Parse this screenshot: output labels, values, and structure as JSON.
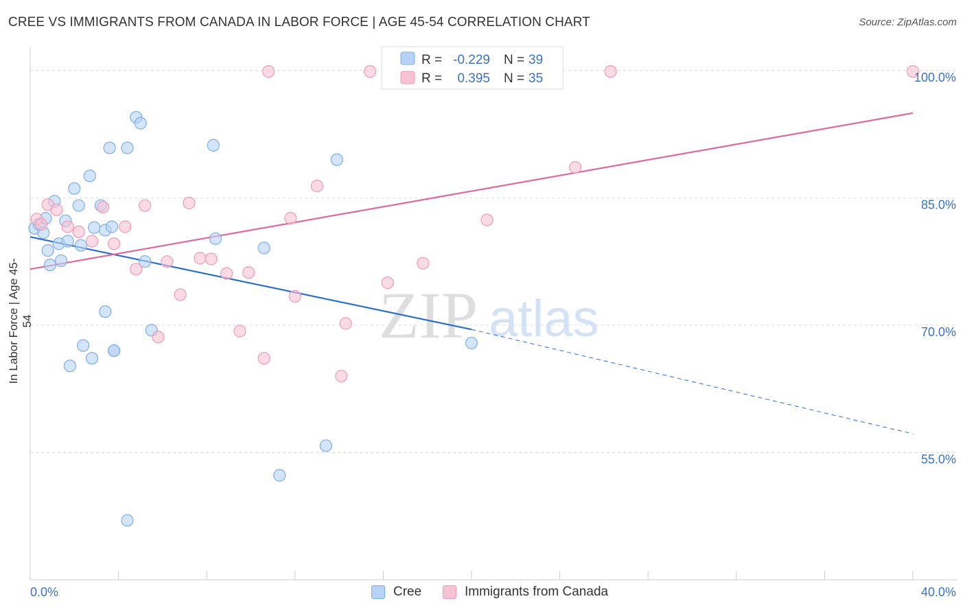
{
  "title": "CREE VS IMMIGRANTS FROM CANADA IN LABOR FORCE | AGE 45-54 CORRELATION CHART",
  "source": "Source: ZipAtlas.com",
  "watermark": {
    "zip": "ZIP",
    "atlas": "atlas"
  },
  "colors": {
    "cree_fill": "#b7d2f5",
    "cree_stroke": "#7aaee8",
    "cree_line": "#2a6fcc",
    "canada_fill": "#f7c3d3",
    "canada_stroke": "#ee9ab5",
    "canada_line": "#e0699a",
    "value_text": "#3a72c4",
    "grid": "#dddddd",
    "axis": "#cccccc"
  },
  "legend_top": [
    {
      "r_label": "R =",
      "r_value": "-0.229",
      "n_label": "N =",
      "n_value": "39"
    },
    {
      "r_label": "R =",
      "r_value": "0.395",
      "n_label": "N =",
      "n_value": "35"
    }
  ],
  "legend_bottom": [
    "Cree",
    "Immigrants from Canada"
  ],
  "chart_data": {
    "type": "scatter",
    "title": "CREE VS IMMIGRANTS FROM CANADA IN LABOR FORCE | AGE 45-54 CORRELATION CHART",
    "xlabel": "",
    "ylabel": "In Labor Force | Age 45-54",
    "xlim": [
      0,
      40
    ],
    "ylim": [
      40,
      102.5
    ],
    "x_tick_labels": [
      "0.0%",
      "40.0%"
    ],
    "y_ticks": [
      55,
      70,
      85,
      100
    ],
    "y_tick_labels": [
      "55.0%",
      "70.0%",
      "85.0%",
      "100.0%"
    ],
    "grid": true,
    "legend_placement": "top-center",
    "series": [
      {
        "name": "Cree",
        "r": -0.229,
        "n": 39,
        "points": [
          [
            0.2,
            81.4
          ],
          [
            0.4,
            81.9
          ],
          [
            0.6,
            80.9
          ],
          [
            0.7,
            82.6
          ],
          [
            0.8,
            78.8
          ],
          [
            0.9,
            77.1
          ],
          [
            1.1,
            84.6
          ],
          [
            1.3,
            79.6
          ],
          [
            1.4,
            77.6
          ],
          [
            1.6,
            82.3
          ],
          [
            1.7,
            79.9
          ],
          [
            1.8,
            65.2
          ],
          [
            2.0,
            86.1
          ],
          [
            2.2,
            84.1
          ],
          [
            2.3,
            79.4
          ],
          [
            2.4,
            67.6
          ],
          [
            2.7,
            87.6
          ],
          [
            2.8,
            66.1
          ],
          [
            2.9,
            81.5
          ],
          [
            3.2,
            84.1
          ],
          [
            3.4,
            81.2
          ],
          [
            3.4,
            71.6
          ],
          [
            3.6,
            90.9
          ],
          [
            3.7,
            81.6
          ],
          [
            3.8,
            67.0
          ],
          [
            4.4,
            90.9
          ],
          [
            4.8,
            94.5
          ],
          [
            5.0,
            93.8
          ],
          [
            5.2,
            77.5
          ],
          [
            5.5,
            69.4
          ],
          [
            4.4,
            47.0
          ],
          [
            8.3,
            91.2
          ],
          [
            8.4,
            80.2
          ],
          [
            10.6,
            79.1
          ],
          [
            13.9,
            89.5
          ],
          [
            13.4,
            55.8
          ],
          [
            11.3,
            52.3
          ],
          [
            20.0,
            67.9
          ],
          [
            3.8,
            67.0
          ]
        ],
        "trend": {
          "x0": 0,
          "y0": 80.4,
          "x1": 20.0,
          "y1": 69.5,
          "dashed_to_x": 40,
          "dashed_to_y": 57.2
        }
      },
      {
        "name": "Immigrants from Canada",
        "r": 0.395,
        "n": 35,
        "points": [
          [
            0.3,
            82.5
          ],
          [
            0.5,
            81.9
          ],
          [
            0.8,
            84.2
          ],
          [
            1.2,
            83.6
          ],
          [
            1.7,
            81.6
          ],
          [
            2.2,
            81.0
          ],
          [
            2.8,
            79.9
          ],
          [
            3.3,
            83.9
          ],
          [
            3.8,
            79.6
          ],
          [
            4.3,
            81.6
          ],
          [
            4.8,
            76.6
          ],
          [
            5.2,
            84.1
          ],
          [
            5.8,
            68.6
          ],
          [
            6.2,
            77.5
          ],
          [
            6.8,
            73.6
          ],
          [
            7.2,
            84.4
          ],
          [
            7.7,
            77.9
          ],
          [
            8.2,
            77.8
          ],
          [
            8.9,
            76.1
          ],
          [
            9.5,
            69.3
          ],
          [
            9.9,
            76.2
          ],
          [
            10.8,
            99.9
          ],
          [
            10.6,
            66.1
          ],
          [
            11.8,
            82.6
          ],
          [
            12.0,
            73.4
          ],
          [
            13.0,
            86.4
          ],
          [
            14.1,
            64.0
          ],
          [
            14.3,
            70.2
          ],
          [
            15.4,
            99.9
          ],
          [
            16.2,
            75.0
          ],
          [
            17.8,
            77.3
          ],
          [
            20.7,
            82.4
          ],
          [
            24.7,
            88.6
          ],
          [
            26.3,
            99.9
          ],
          [
            40.0,
            99.9
          ]
        ],
        "trend": {
          "x0": 0,
          "y0": 76.6,
          "x1": 40,
          "y1": 95.0
        }
      }
    ]
  }
}
